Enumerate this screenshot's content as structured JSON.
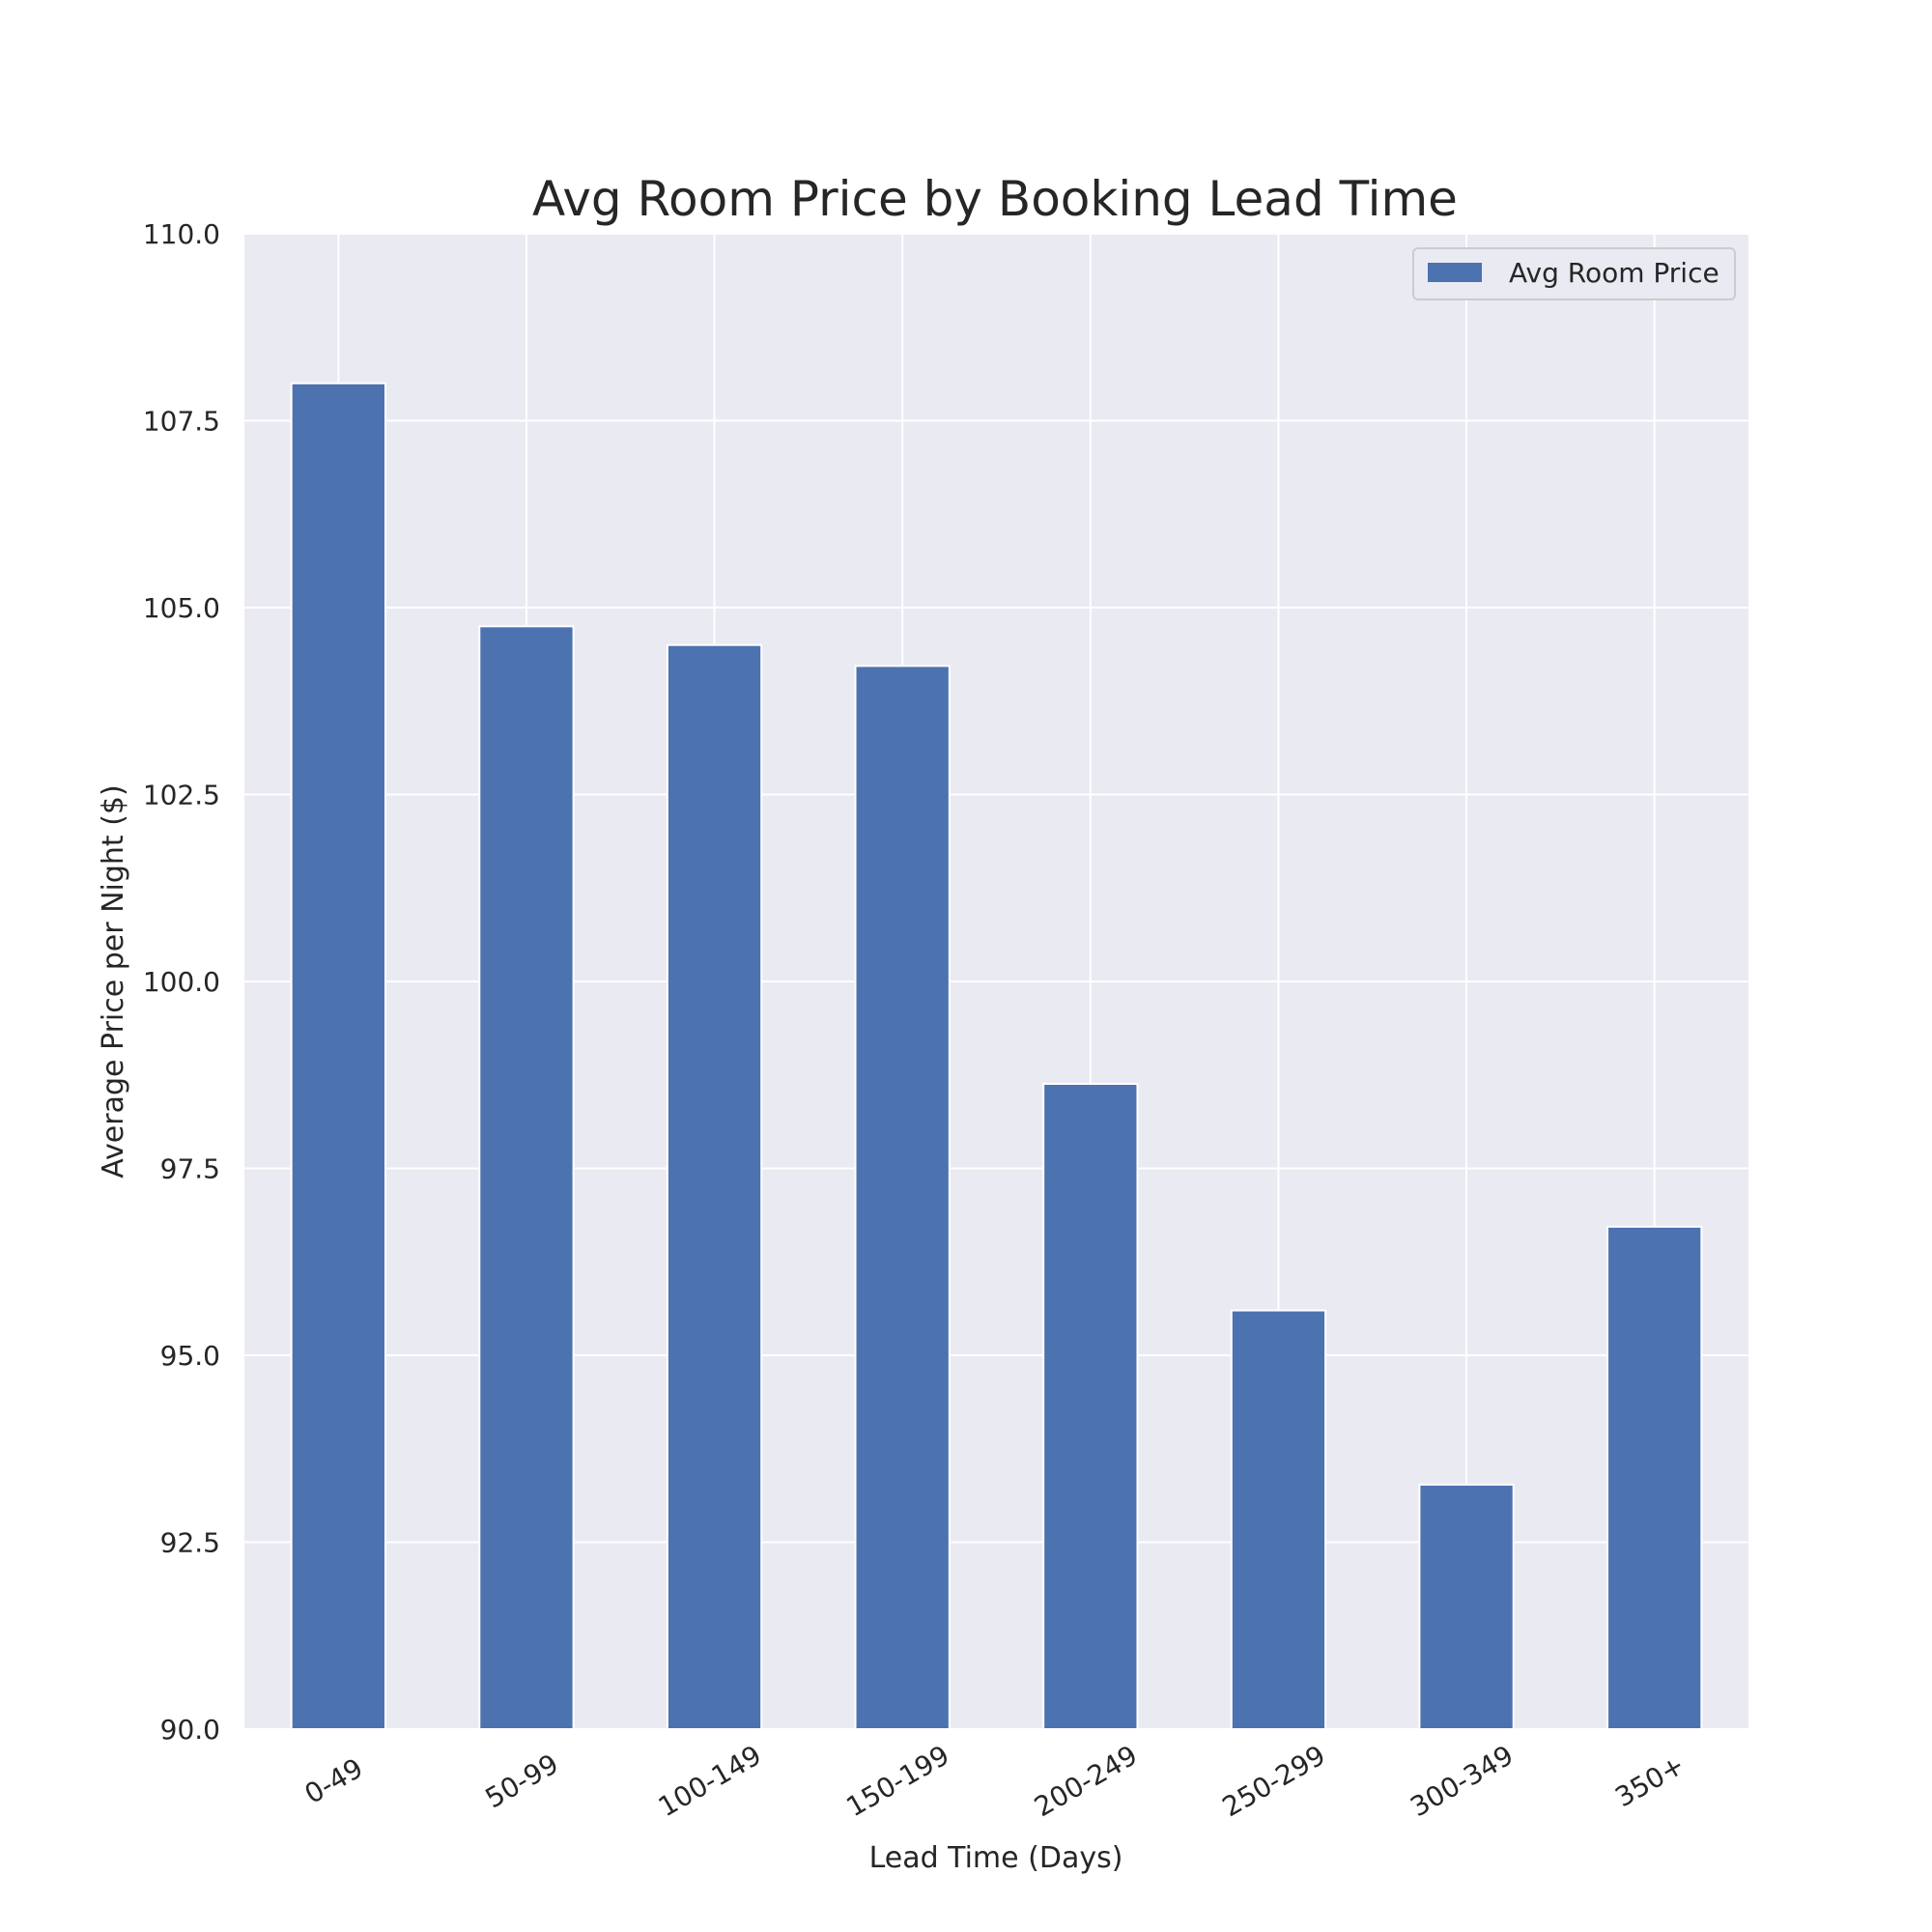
{
  "chart_data": {
    "type": "bar",
    "title": "Avg Room Price by Booking Lead Time",
    "xlabel": "Lead Time (Days)",
    "ylabel": "Average Price per Night ($)",
    "categories": [
      "0-49",
      "50-99",
      "100-149",
      "150-199",
      "200-249",
      "250-299",
      "300-349",
      "350+"
    ],
    "series": [
      {
        "name": "Avg Room Price",
        "values": [
          108.0,
          104.75,
          104.5,
          104.22,
          98.63,
          95.6,
          93.27,
          96.72
        ]
      }
    ],
    "ylim": [
      90,
      110
    ],
    "yticks": [
      "90.0",
      "92.5",
      "95.0",
      "97.5",
      "100.0",
      "102.5",
      "105.0",
      "107.5",
      "110.0"
    ],
    "grid": true,
    "legend_position": "top-right",
    "colors": {
      "bar": "#4c72b0",
      "plot_background": "#eaeaf2",
      "grid": "#ffffff"
    }
  }
}
